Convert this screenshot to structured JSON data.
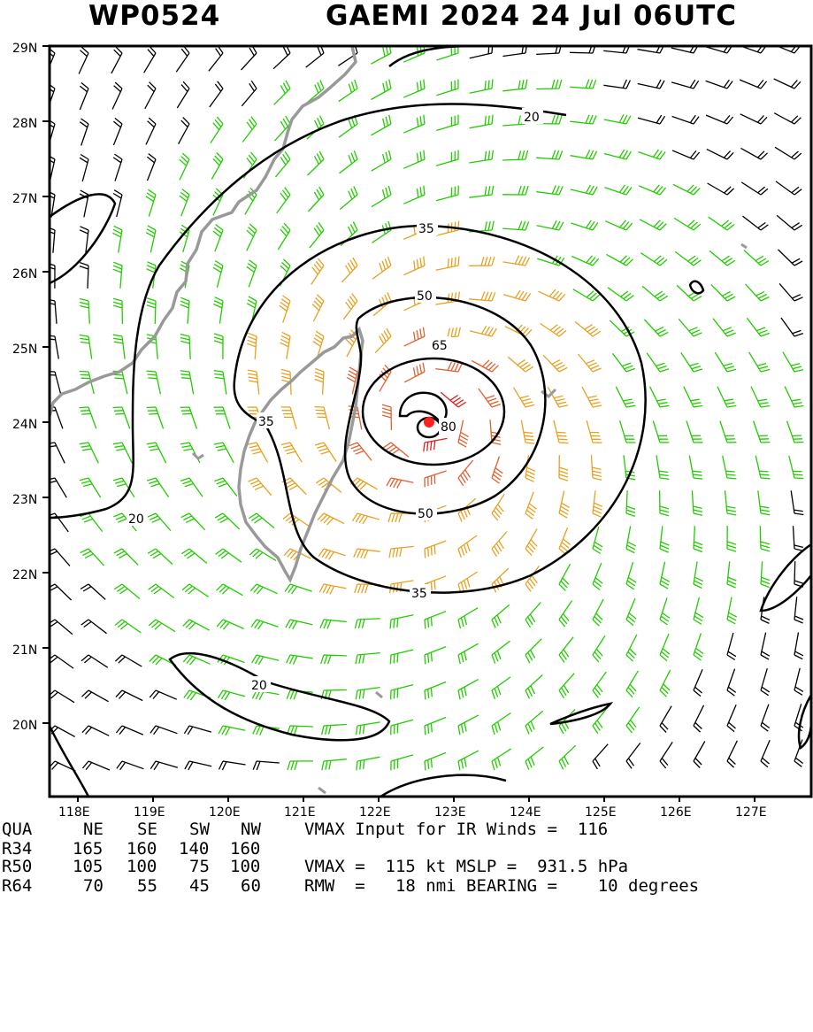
{
  "header": {
    "storm_id": "WP0524",
    "storm_name_time": "GAEMI 2024 24 Jul 06UTC"
  },
  "map": {
    "lat_labels": [
      "29N",
      "28N",
      "27N",
      "26N",
      "25N",
      "24N",
      "23N",
      "22N",
      "21N",
      "20N"
    ],
    "lon_labels": [
      "118E",
      "119E",
      "120E",
      "121E",
      "122E",
      "123E",
      "124E",
      "125E",
      "126E",
      "127E"
    ],
    "contour_labels": [
      "20",
      "35",
      "50",
      "65",
      "80",
      "35",
      "50",
      "35",
      "20",
      "20"
    ],
    "center_marker": "storm-center-dot",
    "colors": {
      "wind_lt34": "#000000",
      "wind_34_49": "#22cc00",
      "wind_50_63": "#e8a020",
      "wind_64_79": "#e06030",
      "wind_ge80": "#e02020",
      "coastline": "#999999",
      "contour": "#000000"
    }
  },
  "table": {
    "header": [
      "QUA",
      "NE",
      "SE",
      "SW",
      "NW"
    ],
    "rows": [
      {
        "label": "R34",
        "ne": "165",
        "se": "160",
        "sw": "140",
        "nw": "160"
      },
      {
        "label": "R50",
        "ne": "105",
        "se": "100",
        "sw": "75",
        "nw": "100"
      },
      {
        "label": "R64",
        "ne": "70",
        "se": "55",
        "sw": "45",
        "nw": "60"
      }
    ],
    "info_lines": [
      "VMAX Input for IR Winds =  116",
      "",
      "VMAX =  115 kt MSLP =  931.5 hPa",
      "RMW  =   18 nmi BEARING =    10 degrees"
    ]
  }
}
